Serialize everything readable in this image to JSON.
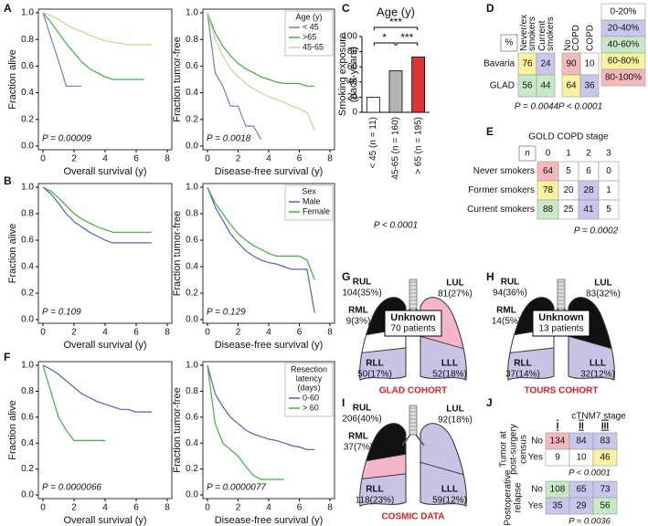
{
  "panel_labels": [
    "A",
    "B",
    "C",
    "D",
    "E",
    "F",
    "G",
    "H",
    "I",
    "J"
  ],
  "chart_data": [
    {
      "type": "line",
      "ylabel": "Fraction alive",
      "xlabel": "Overall survival (y)",
      "annotation": "P = 0.00009",
      "x": [
        0,
        0.5,
        1,
        1.5,
        2,
        2.5,
        3,
        3.5,
        4,
        4.5,
        5,
        5.5,
        6,
        6.5,
        7,
        7.5
      ],
      "xlim": [
        0,
        8
      ],
      "xticks": [
        0,
        2,
        4,
        6,
        8
      ],
      "ylim": [
        0,
        1
      ],
      "yticks": [
        {
          "value": 0,
          "label": "0.0"
        },
        {
          "value": 0.2,
          "label": "0.2"
        },
        {
          "value": 0.4,
          "label": "0.4"
        },
        {
          "value": 0.6,
          "label": "0.6"
        },
        {
          "value": 0.8,
          "label": "0.8"
        },
        {
          "value": 1,
          "label": "1.0"
        }
      ],
      "series": [
        {
          "color": "#6a7fd0",
          "values": [
            1,
            0.82,
            0.64,
            0.45,
            0.45,
            0.45,
            null,
            null,
            null,
            null,
            null,
            null,
            null,
            null,
            null,
            null
          ]
        },
        {
          "color": "#3cb43c",
          "values": [
            1,
            0.93,
            0.85,
            0.77,
            0.7,
            0.63,
            0.58,
            0.55,
            0.52,
            0.5,
            0.5,
            0.5,
            0.5,
            0.5,
            null,
            null
          ]
        },
        {
          "color": "#d9cc8e",
          "values": [
            1,
            0.98,
            0.95,
            0.91,
            0.88,
            0.86,
            0.83,
            0.81,
            0.79,
            0.78,
            0.77,
            0.76,
            0.76,
            0.76,
            0.76,
            null
          ]
        }
      ]
    },
    {
      "type": "line",
      "ylabel": "Fraction tumor-free",
      "xlabel": "Disease-free survival (y)",
      "annotation": "P = 0.0018",
      "x": [
        0,
        0.5,
        1,
        1.5,
        2,
        2.5,
        3,
        3.5,
        4,
        4.5,
        5,
        5.5,
        6,
        6.5,
        7,
        7.5
      ],
      "xlim": [
        0,
        8
      ],
      "xticks": [
        0,
        2,
        4,
        6,
        8
      ],
      "ylim": [
        0,
        1
      ],
      "yticks": [
        {
          "value": 0,
          "label": "0.0"
        },
        {
          "value": 0.2,
          "label": "0.2"
        },
        {
          "value": 0.4,
          "label": "0.4"
        },
        {
          "value": 0.6,
          "label": "0.6"
        },
        {
          "value": 0.8,
          "label": "0.8"
        },
        {
          "value": 1,
          "label": "1.0"
        }
      ],
      "legend": "top-right",
      "legend_title": [
        "Age (y)"
      ],
      "series": [
        {
          "name": "< 45",
          "color": "#6a7fd0",
          "values": [
            1,
            0.55,
            0.45,
            0.3,
            0.3,
            0.15,
            0.15,
            0.05,
            null,
            null,
            null,
            null,
            null,
            null,
            null,
            null
          ]
        },
        {
          "name": ">65",
          "color": "#3cb43c",
          "values": [
            1,
            0.85,
            0.75,
            0.68,
            0.62,
            0.58,
            0.55,
            0.52,
            0.5,
            0.48,
            0.47,
            0.47,
            0.47,
            0.45,
            0.45,
            null
          ]
        },
        {
          "name": "45-65",
          "color": "#d9cc8e",
          "values": [
            1,
            0.8,
            0.68,
            0.58,
            0.52,
            0.47,
            0.43,
            0.4,
            0.37,
            0.35,
            0.33,
            0.3,
            0.28,
            0.25,
            0.12,
            null
          ]
        }
      ]
    },
    {
      "type": "line",
      "ylabel": "Fraction alive",
      "xlabel": "Overall survival (y)",
      "annotation": "P = 0.109",
      "x": [
        0,
        0.5,
        1,
        1.5,
        2,
        2.5,
        3,
        3.5,
        4,
        4.5,
        5,
        5.5,
        6,
        6.5,
        7,
        7.5
      ],
      "xlim": [
        0,
        8
      ],
      "xticks": [
        0,
        2,
        4,
        6,
        8
      ],
      "ylim": [
        0,
        1
      ],
      "yticks": [
        {
          "value": 0,
          "label": "0.0"
        },
        {
          "value": 0.2,
          "label": "0.2"
        },
        {
          "value": 0.4,
          "label": "0.4"
        },
        {
          "value": 0.6,
          "label": "0.6"
        },
        {
          "value": 0.8,
          "label": "0.8"
        },
        {
          "value": 1,
          "label": "1.0"
        }
      ],
      "series": [
        {
          "color": "#5060c0",
          "values": [
            1,
            0.95,
            0.88,
            0.8,
            0.74,
            0.7,
            0.66,
            0.63,
            0.6,
            0.58,
            0.58,
            0.58,
            0.58,
            0.58,
            0.58,
            null
          ]
        },
        {
          "color": "#3cb43c",
          "values": [
            1,
            0.97,
            0.92,
            0.86,
            0.8,
            0.76,
            0.73,
            0.7,
            0.68,
            0.66,
            0.66,
            0.66,
            0.66,
            0.66,
            0.66,
            null
          ]
        }
      ]
    },
    {
      "type": "line",
      "ylabel": "Fraction tumor-free",
      "xlabel": "Disease-free survival (y)",
      "annotation": "P = 0.129",
      "x": [
        0,
        0.5,
        1,
        1.5,
        2,
        2.5,
        3,
        3.5,
        4,
        4.5,
        5,
        5.5,
        6,
        6.5,
        7,
        7.5
      ],
      "xlim": [
        0,
        8
      ],
      "xticks": [
        0,
        2,
        4,
        6,
        8
      ],
      "ylim": [
        0,
        1
      ],
      "yticks": [
        {
          "value": 0,
          "label": "0.0"
        },
        {
          "value": 0.2,
          "label": "0.2"
        },
        {
          "value": 0.4,
          "label": "0.4"
        },
        {
          "value": 0.6,
          "label": "0.6"
        },
        {
          "value": 0.8,
          "label": "0.8"
        },
        {
          "value": 1,
          "label": "1.0"
        }
      ],
      "legend": "top-right",
      "legend_title": [
        "Sex"
      ],
      "series": [
        {
          "name": "Male",
          "color": "#5060c0",
          "values": [
            1,
            0.85,
            0.75,
            0.65,
            0.58,
            0.52,
            0.48,
            0.45,
            0.43,
            0.42,
            0.4,
            0.38,
            0.38,
            0.38,
            0.05,
            null
          ]
        },
        {
          "name": "Female",
          "color": "#3cb43c",
          "values": [
            1,
            0.88,
            0.8,
            0.72,
            0.65,
            0.6,
            0.56,
            0.53,
            0.5,
            0.48,
            0.48,
            0.48,
            0.48,
            0.45,
            0.3,
            null
          ]
        }
      ]
    },
    {
      "type": "line",
      "ylabel": "Fraction alive",
      "xlabel": "Overall survival (y)",
      "annotation": "P = 0.0000066",
      "x": [
        0,
        0.5,
        1,
        1.5,
        2,
        2.5,
        3,
        3.5,
        4,
        4.5,
        5,
        5.5,
        6,
        6.5,
        7,
        7.5
      ],
      "xlim": [
        0,
        8
      ],
      "xticks": [
        0,
        2,
        4,
        6,
        8
      ],
      "ylim": [
        0,
        1
      ],
      "yticks": [
        {
          "value": 0,
          "label": "0.0"
        },
        {
          "value": 0.2,
          "label": "0.2"
        },
        {
          "value": 0.4,
          "label": "0.4"
        },
        {
          "value": 0.6,
          "label": "0.6"
        },
        {
          "value": 0.8,
          "label": "0.8"
        },
        {
          "value": 1,
          "label": "1.0"
        }
      ],
      "series": [
        {
          "color": "#5060c0",
          "values": [
            1,
            0.97,
            0.93,
            0.88,
            0.83,
            0.78,
            0.75,
            0.72,
            0.7,
            0.68,
            0.66,
            0.66,
            0.64,
            0.64,
            0.64,
            null
          ]
        },
        {
          "color": "#3cb43c",
          "values": [
            1,
            0.8,
            0.6,
            0.5,
            0.42,
            0.42,
            0.42,
            0.42,
            0.42,
            null,
            null,
            null,
            null,
            null,
            null,
            null
          ]
        }
      ]
    },
    {
      "type": "line",
      "ylabel": "Fraction tumor-free",
      "xlabel": "Disease-free survival (y)",
      "annotation": "P = 0.0000077",
      "x": [
        0,
        0.5,
        1,
        1.5,
        2,
        2.5,
        3,
        3.5,
        4,
        4.5,
        5,
        5.5,
        6,
        6.5,
        7,
        7.5
      ],
      "xlim": [
        0,
        8
      ],
      "xticks": [
        0,
        2,
        4,
        6,
        8
      ],
      "ylim": [
        0,
        1
      ],
      "yticks": [
        {
          "value": 0,
          "label": "0.0"
        },
        {
          "value": 0.2,
          "label": "0.2"
        },
        {
          "value": 0.4,
          "label": "0.4"
        },
        {
          "value": 0.6,
          "label": "0.6"
        },
        {
          "value": 0.8,
          "label": "0.8"
        },
        {
          "value": 1,
          "label": "1.0"
        }
      ],
      "legend": "top-right",
      "legend_title": [
        "Resection",
        "latency",
        "(days)"
      ],
      "series": [
        {
          "name": "0-60",
          "color": "#5060c0",
          "values": [
            1,
            0.78,
            0.68,
            0.6,
            0.55,
            0.5,
            0.47,
            0.45,
            0.43,
            0.42,
            0.4,
            0.38,
            0.37,
            0.35,
            0.35,
            null
          ]
        },
        {
          "name": "> 60",
          "color": "#3cb43c",
          "values": [
            1,
            0.55,
            0.4,
            0.35,
            0.3,
            0.22,
            0.15,
            0.12,
            0.12,
            0.12,
            0.12,
            null,
            null,
            null,
            null,
            null
          ]
        }
      ]
    },
    {
      "type": "bar",
      "title": "Age (y)",
      "ylabel": [
        "Smoking exposure",
        "(pack-years)"
      ],
      "categories": [
        "< 45 (n = 11)",
        "45-65 (n = 160)",
        "> 65 (n = 195)"
      ],
      "values": [
        20,
        55,
        73
      ],
      "colors": [
        "#ffffff",
        "#b4b4b4",
        "#e03434"
      ],
      "ylim": [
        0,
        100
      ],
      "yticks": [
        0,
        20,
        40,
        60,
        80,
        100
      ],
      "annotations": [
        "***",
        "*",
        "***"
      ],
      "p_value": "P < 0.0001"
    }
  ],
  "tables": {
    "D": {
      "corner": "%",
      "col_headers": [
        [
          "Never/ex",
          "smokers"
        ],
        [
          "Current",
          "smokers"
        ],
        [
          "No",
          "COPD"
        ],
        [
          "COPD"
        ]
      ],
      "rows": [
        {
          "label": "Bavaria",
          "values": [
            76,
            24,
            90,
            10
          ]
        },
        {
          "label": "GLAD",
          "values": [
            56,
            44,
            64,
            36
          ]
        }
      ],
      "p_values": [
        "P = 0.0044",
        "P < 0.0001"
      ],
      "scale": [
        {
          "label": "0-20%",
          "color": "#ffffff"
        },
        {
          "label": "20-40%",
          "color": "#c9c6ec"
        },
        {
          "label": "40-60%",
          "color": "#c6eac6"
        },
        {
          "label": "60-80%",
          "color": "#faf29e"
        },
        {
          "label": "80-100%",
          "color": "#f6b9b9"
        }
      ]
    },
    "E": {
      "title": "GOLD COPD stage",
      "corner": "n",
      "col_headers": [
        "0",
        "1",
        "2",
        "3"
      ],
      "rows": [
        {
          "label": "Never smokers",
          "values": [
            64,
            5,
            6,
            0
          ],
          "colors": [
            "#f6b9b9",
            null,
            null,
            null
          ]
        },
        {
          "label": "Former smokers",
          "values": [
            78,
            20,
            28,
            1
          ],
          "colors": [
            "#faf29e",
            null,
            "#c9c6ec",
            null
          ]
        },
        {
          "label": "Current smokers",
          "values": [
            88,
            25,
            41,
            5
          ],
          "colors": [
            "#c6eac6",
            null,
            "#c9c6ec",
            null
          ]
        }
      ],
      "p_value": "P = 0.0002"
    },
    "J": {
      "title": "cTNM7 stage",
      "col_headers": [
        "I",
        "II",
        "III"
      ],
      "groups": [
        {
          "label": [
            "Tumor at",
            "post-surgery",
            "census"
          ],
          "p_value": "P < 0.0001",
          "rows": [
            {
              "label": "No",
              "values": [
                134,
                84,
                83
              ],
              "colors": [
                "#f6b9b9",
                "#c9c6ec",
                "#c9c6ec"
              ]
            },
            {
              "label": "Yes",
              "values": [
                9,
                10,
                46
              ],
              "colors": [
                null,
                null,
                "#faf29e"
              ]
            }
          ]
        },
        {
          "label": [
            "Postoperative",
            "relapse"
          ],
          "p_value": "P = 0.0036",
          "rows": [
            {
              "label": "No",
              "values": [
                108,
                65,
                73
              ],
              "colors": [
                "#c6eac6",
                "#c9c6ec",
                "#c9c6ec"
              ]
            },
            {
              "label": "Yes",
              "values": [
                35,
                29,
                56
              ],
              "colors": [
                "#c9c6ec",
                "#c9c6ec",
                "#c6eac6"
              ]
            }
          ]
        }
      ]
    }
  },
  "lungs": [
    {
      "lobes": [
        {
          "name": "RUL",
          "label": "104(35%)",
          "color": "#111111"
        },
        {
          "name": "LUL",
          "label": "81(27%)",
          "color": "#f4b6c8"
        },
        {
          "name": "RML",
          "label": "9(3%)",
          "color": "#ffffff"
        },
        {
          "name": "RLL",
          "label": "50(17%)",
          "color": "#c9c3e6"
        },
        {
          "name": "LLL",
          "label": "52(18%)",
          "color": "#c9c3e6"
        }
      ],
      "unknown": [
        "Unknown",
        "70 patients"
      ],
      "cohort": "GLAD COHORT"
    },
    {
      "lobes": [
        {
          "name": "RUL",
          "label": "94(36%)",
          "color": "#111111"
        },
        {
          "name": "LUL",
          "label": "83(32%)",
          "color": "#111111"
        },
        {
          "name": "RML",
          "label": "14(5%)",
          "color": "#ffffff"
        },
        {
          "name": "RLL",
          "label": "37(14%)",
          "color": "#c9c3e6"
        },
        {
          "name": "LLL",
          "label": "32(12%)",
          "color": "#c9c3e6"
        }
      ],
      "unknown": [
        "Unknown",
        "13 patients"
      ],
      "cohort": "TOURS COHORT"
    },
    {
      "lobes": [
        {
          "name": "RUL",
          "label": "206(40%)",
          "color": "#111111"
        },
        {
          "name": "LUL",
          "label": "92(18%)",
          "color": "#c9c3e6"
        },
        {
          "name": "RML",
          "label": "37(7%)",
          "color": "#f4b6c8"
        },
        {
          "name": "RLL",
          "label": "118(23%)",
          "color": "#c9c3e6"
        },
        {
          "name": "LLL",
          "label": "59(12%)",
          "color": "#c9c3e6"
        }
      ],
      "cohort": "COSMIC DATA"
    }
  ]
}
